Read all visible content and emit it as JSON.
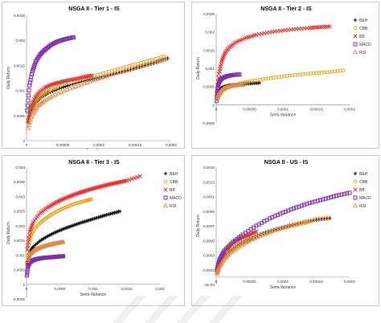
{
  "chart_data": [
    {
      "type": "scatter",
      "title": "NSGA II - Tier 1 - IS",
      "xlabel": "Semi-Variance",
      "ylabel": "Daily Return",
      "xlim": [
        0,
        0.0002
      ],
      "ylim": [
        0,
        0.0025
      ],
      "x_ticks": [
        "0",
        "0,00005",
        "0,0001",
        "0,00015",
        "0,0002"
      ],
      "y_ticks": [
        "0",
        "0,0005",
        "0,001",
        "0,0015",
        "0,002",
        "0,0025"
      ],
      "legend": "none",
      "series": [
        {
          "name": "B&H",
          "marker": "plus",
          "color": "#000000",
          "x": [
            2e-06,
            6e-06,
            1.2e-05,
            2e-05,
            3e-05,
            4.5e-05,
            6e-05,
            8e-05,
            0.0001,
            0.00012,
            0.00014,
            0.00016,
            0.00018,
            0.000195
          ],
          "y": [
            0.00035,
            0.00058,
            0.00074,
            0.00086,
            0.00095,
            0.00104,
            0.00111,
            0.00119,
            0.00126,
            0.00133,
            0.0014,
            0.00148,
            0.00156,
            0.00163
          ]
        },
        {
          "name": "CBB",
          "marker": "circle",
          "color": "#e3a318",
          "x": [
            2e-06,
            8e-06,
            1.5e-05,
            2.5e-05,
            3.5e-05,
            5e-05,
            7e-05,
            9e-05,
            0.00011,
            0.00013,
            0.00015,
            0.00017,
            0.00019
          ],
          "y": [
            0.00038,
            0.00066,
            0.00082,
            0.00094,
            0.00102,
            0.00111,
            0.0012,
            0.00128,
            0.00136,
            0.00144,
            0.00152,
            0.0016,
            0.00168
          ]
        },
        {
          "name": "BB",
          "marker": "cross",
          "color": "#e0322e",
          "x": [
            2e-06,
            6e-06,
            1.2e-05,
            1.8e-05,
            2.6e-05,
            3.5e-05,
            4.5e-05,
            5.6e-05,
            6.8e-05,
            8e-05,
            9e-05
          ],
          "y": [
            0.0004,
            0.00068,
            0.00086,
            0.00097,
            0.00106,
            0.00112,
            0.00116,
            0.0012,
            0.00123,
            0.00127,
            0.0013
          ]
        },
        {
          "name": "MACD",
          "marker": "square",
          "color": "#7f2fa8",
          "x": [
            1e-06,
            4e-06,
            8e-06,
            1.3e-05,
            1.9e-05,
            2.6e-05,
            3.4e-05,
            4.2e-05,
            5e-05,
            5.8e-05,
            6.5e-05
          ],
          "y": [
            0.0006,
            0.0011,
            0.00138,
            0.00158,
            0.00172,
            0.00182,
            0.00191,
            0.00197,
            0.00201,
            0.00204,
            0.00206
          ]
        },
        {
          "name": "RSI",
          "marker": "triangle",
          "color": "#e08a4b",
          "x": [
            2e-06,
            8e-06,
            1.5e-05,
            2.5e-05,
            4e-05,
            6e-05,
            8e-05,
            0.0001,
            0.00012,
            0.00014,
            0.00016,
            0.00018,
            0.000195
          ],
          "y": [
            0.00025,
            0.00052,
            0.00068,
            0.0008,
            0.00092,
            0.00104,
            0.00114,
            0.00124,
            0.00133,
            0.00141,
            0.0015,
            0.00158,
            0.00165
          ]
        }
      ]
    },
    {
      "type": "scatter",
      "title": "NSGA II - Tier 2 - IS",
      "xlabel": "Semi-Variance",
      "ylabel": "Daily Return",
      "xlim": [
        0,
        0.0002
      ],
      "ylim": [
        -0.0005,
        0.0025
      ],
      "x_ticks": [
        "0",
        "0,00005",
        "0,0001",
        "0,00015",
        "0,0002"
      ],
      "y_ticks": [
        "-0,0005",
        "0",
        "0,0005",
        "0,001",
        "0,0015",
        "0,002",
        "0,0025"
      ],
      "legend": "right",
      "series": [
        {
          "name": "B&H",
          "marker": "plus",
          "color": "#000000",
          "x": [
            1e-06,
            4e-06,
            8e-06,
            1.3e-05,
            2e-05,
            2.8e-05,
            3.6e-05,
            4.5e-05,
            5.5e-05,
            6.5e-05
          ],
          "y": [
            0.00018,
            0.00037,
            0.00046,
            0.0005,
            0.00053,
            0.00055,
            0.00056,
            0.00058,
            0.00059,
            0.0006
          ]
        },
        {
          "name": "CBB",
          "marker": "circle",
          "color": "#e3a318",
          "x": [
            3e-06,
            1e-05,
            2e-05,
            3.5e-05,
            5e-05,
            7e-05,
            9e-05,
            0.00011,
            0.00013,
            0.00015,
            0.00017,
            0.00019
          ],
          "y": [
            0.00022,
            0.0004,
            0.0005,
            0.00058,
            0.00064,
            0.0007,
            0.00075,
            0.0008,
            0.00084,
            0.00087,
            0.0009,
            0.00094
          ]
        },
        {
          "name": "BB",
          "marker": "cross",
          "color": "#e0322e",
          "x": [
            1e-06,
            4e-06,
            8e-06,
            1.3e-05,
            2e-05,
            3e-05,
            4.5e-05,
            6e-05,
            8e-05,
            0.0001,
            0.00012,
            0.00014,
            0.000155,
            0.00017
          ],
          "y": [
            0.0003,
            0.00085,
            0.00118,
            0.00142,
            0.00158,
            0.00172,
            0.00184,
            0.00192,
            0.00199,
            0.00204,
            0.00208,
            0.00211,
            0.00213,
            0.00215
          ]
        },
        {
          "name": "MACD",
          "marker": "square",
          "color": "#7f2fa8",
          "x": [
            5e-07,
            2e-06,
            5e-06,
            9e-06,
            1.4e-05,
            2e-05,
            2.7e-05,
            3.5e-05
          ],
          "y": [
            0.0001,
            0.00045,
            0.00064,
            0.00073,
            0.00077,
            0.0008,
            0.00082,
            0.00083
          ]
        },
        {
          "name": "RSI",
          "marker": "triangle",
          "color": "#e08a4b",
          "x": [
            1e-06,
            4e-06,
            8e-06,
            1.2e-05,
            1.8e-05,
            2.5e-05,
            3.2e-05,
            4e-05
          ],
          "y": [
            0.00015,
            0.0003,
            0.0004,
            0.00045,
            0.00049,
            0.00052,
            0.00054,
            0.00055
          ]
        }
      ]
    },
    {
      "type": "scatter",
      "title": "NSGA II - Tier 3 - IS",
      "xlabel": "Semi-Variance",
      "ylabel": "Daily Return",
      "xlim": [
        0,
        0.002
      ],
      "ylim": [
        -0.0005,
        0.004
      ],
      "x_ticks": [
        "0",
        "0,0005",
        "0,001",
        "0,0015",
        "0,002"
      ],
      "y_ticks": [
        "-0,0005",
        "0",
        "0,0005",
        "0,001",
        "0,0015",
        "0,002",
        "0,0025",
        "0,003",
        "0,0035",
        "0,004"
      ],
      "legend": "right",
      "series": [
        {
          "name": "B&H",
          "marker": "plus",
          "color": "#000000",
          "x": [
            1e-05,
            5e-05,
            0.0001,
            0.0002,
            0.0003,
            0.0004,
            0.0005,
            0.0006,
            0.0007,
            0.0008,
            0.0009,
            0.001,
            0.0011,
            0.0012,
            0.0013,
            0.0014
          ],
          "y": [
            0.0007,
            0.0011,
            0.00128,
            0.00148,
            0.00162,
            0.00174,
            0.00184,
            0.00193,
            0.00201,
            0.00209,
            0.00216,
            0.00223,
            0.0023,
            0.00237,
            0.00243,
            0.00249
          ]
        },
        {
          "name": "CBB",
          "marker": "circle",
          "color": "#e3a318",
          "x": [
            1e-05,
            5e-05,
            0.0001,
            0.0002,
            0.0003,
            0.0004,
            0.0005,
            0.0006,
            0.0007,
            0.0008,
            0.0009,
            0.00097
          ],
          "y": [
            0.001,
            0.00155,
            0.00182,
            0.00209,
            0.00227,
            0.00242,
            0.00254,
            0.00264,
            0.00273,
            0.0028,
            0.00286,
            0.0029
          ]
        },
        {
          "name": "BB",
          "marker": "cross",
          "color": "#e0322e",
          "x": [
            1e-05,
            5e-05,
            0.0001,
            0.0002,
            0.0003,
            0.0004,
            0.0005,
            0.0006,
            0.0007,
            0.0008,
            0.0009,
            0.001,
            0.0011,
            0.0012,
            0.0013,
            0.0014,
            0.0015,
            0.0017
          ],
          "y": [
            0.0012,
            0.0018,
            0.00212,
            0.00242,
            0.0026,
            0.00274,
            0.00286,
            0.00296,
            0.00305,
            0.00313,
            0.0032,
            0.00327,
            0.00333,
            0.00339,
            0.00344,
            0.00349,
            0.00354,
            0.00369
          ]
        },
        {
          "name": "MACD",
          "marker": "square",
          "color": "#7f2fa8",
          "x": [
            5e-06,
            2e-05,
            5e-05,
            0.0001,
            0.00015,
            0.0002,
            0.00025,
            0.0003,
            0.00035,
            0.0004,
            0.00045,
            0.0005,
            0.00055
          ],
          "y": [
            0.0003,
            0.0006,
            0.00075,
            0.00082,
            0.00086,
            0.00088,
            0.0009,
            0.00091,
            0.00092,
            0.00093,
            0.00094,
            0.00095,
            0.00096
          ]
        },
        {
          "name": "RSI",
          "marker": "triangle",
          "color": "#e08a4b",
          "x": [
            1e-05,
            5e-05,
            0.0001,
            0.00015,
            0.0002,
            0.00025,
            0.0003,
            0.00035,
            0.0004,
            0.00045,
            0.0005,
            0.00055
          ],
          "y": [
            0.0008,
            0.00102,
            0.00114,
            0.0012,
            0.00125,
            0.00129,
            0.00132,
            0.00135,
            0.00138,
            0.0014,
            0.00142,
            0.00145
          ]
        }
      ]
    },
    {
      "type": "scatter",
      "title": "NSGA II - US - IS",
      "xlabel": "Semi-Variance",
      "ylabel": "Daily Return",
      "xlim": [
        0,
        0.0002
      ],
      "ylim": [
        -0.0001,
        0.0015
      ],
      "x_ticks": [
        "0",
        "0,00005",
        "0,0001",
        "0,00015",
        "0,0002"
      ],
      "y_ticks": [
        "-1E-04",
        "0,0001",
        "0,0003",
        "0,0005",
        "0,0007",
        "0,0009",
        "0,0011",
        "0,0013",
        "0,0015"
      ],
      "legend": "right",
      "series": [
        {
          "name": "B&H",
          "marker": "plus",
          "color": "#000000",
          "x": [
            1e-06,
            4e-06,
            1e-05,
            2e-05,
            3.5e-05,
            5e-05,
            7e-05,
            9e-05,
            0.00011,
            0.00013,
            0.00015,
            0.00017
          ],
          "y": [
            7e-05,
            0.00016,
            0.00025,
            0.00035,
            0.00045,
            0.00052,
            0.0006,
            0.00066,
            0.00071,
            0.00075,
            0.00078,
            0.0008
          ]
        },
        {
          "name": "CBB",
          "marker": "circle",
          "color": "#e3a318",
          "x": [
            1e-06,
            4e-06,
            1e-05,
            2e-05,
            3.5e-05,
            5e-05,
            7e-05,
            9e-05,
            0.00011,
            0.00013,
            0.000145
          ],
          "y": [
            6e-05,
            0.00015,
            0.00024,
            0.00034,
            0.00044,
            0.00051,
            0.00058,
            0.00064,
            0.00069,
            0.00073,
            0.00077
          ]
        },
        {
          "name": "BB",
          "marker": "cross",
          "color": "#e0322e",
          "x": [
            1e-06,
            3e-06,
            7e-06,
            1.2e-05,
            2e-05,
            3e-05,
            4e-05,
            5e-05,
            6e-05
          ],
          "y": [
            8e-05,
            0.00016,
            0.00026,
            0.00034,
            0.00042,
            0.00049,
            0.00054,
            0.00058,
            0.00062
          ]
        },
        {
          "name": "MACD",
          "marker": "square",
          "color": "#7f2fa8",
          "x": [
            1e-06,
            5e-06,
            1.2e-05,
            2.5e-05,
            4e-05,
            6e-05,
            8e-05,
            0.0001,
            0.00012,
            0.00014,
            0.00016,
            0.00018,
            0.0002
          ],
          "y": [
            0.0001,
            0.00024,
            0.00036,
            0.00048,
            0.00058,
            0.0007,
            0.0008,
            0.00088,
            0.00095,
            0.00101,
            0.00106,
            0.00111,
            0.00115
          ]
        },
        {
          "name": "RSI",
          "marker": "triangle",
          "color": "#e08a4b",
          "x": [
            1e-06,
            4e-06,
            1e-05,
            2e-05,
            3.5e-05,
            5e-05,
            7e-05,
            9e-05,
            0.00011,
            0.00013,
            0.00015,
            0.00017
          ],
          "y": [
            5e-05,
            0.00013,
            0.00022,
            0.00032,
            0.00042,
            0.0005,
            0.00058,
            0.00065,
            0.0007,
            0.00075,
            0.00079,
            0.00081
          ]
        }
      ]
    }
  ]
}
